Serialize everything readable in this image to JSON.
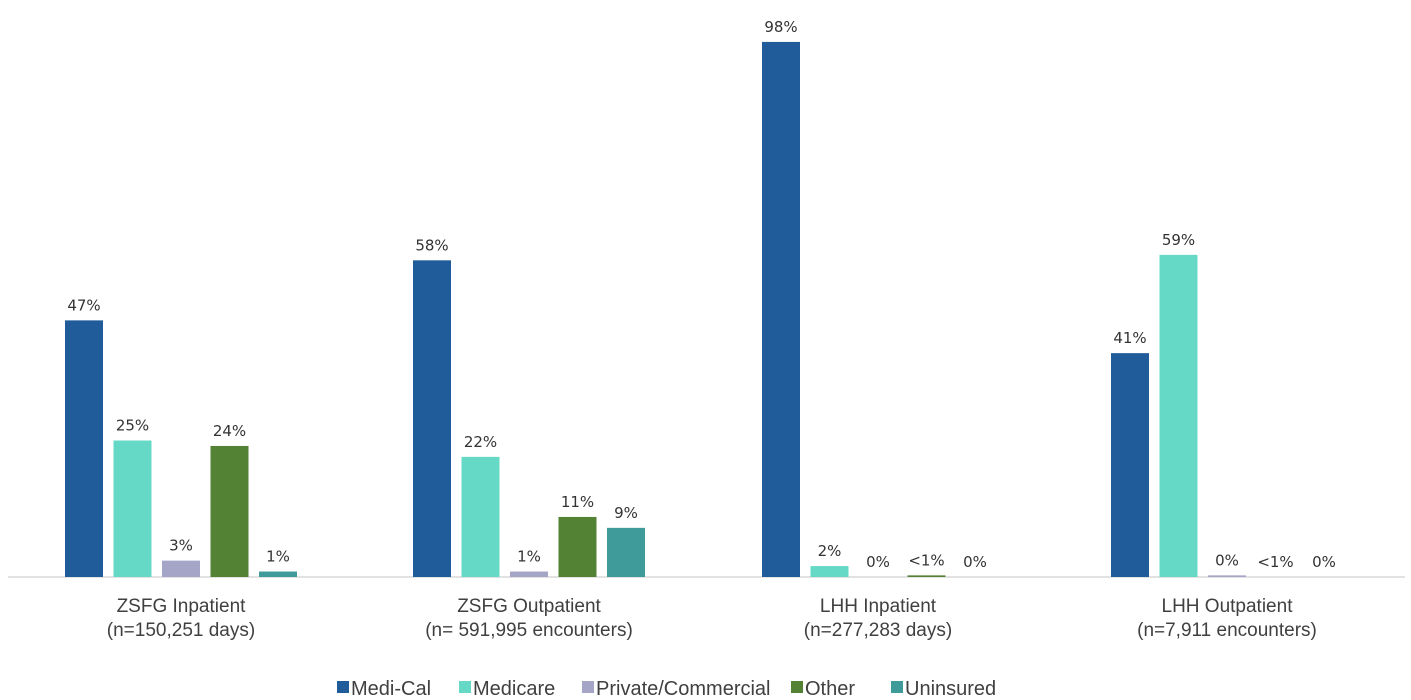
{
  "chart_data": {
    "type": "bar",
    "categories": [
      [
        "ZSFG Inpatient",
        "(n=150,251 days)"
      ],
      [
        "ZSFG Outpatient",
        "(n= 591,995 encounters)"
      ],
      [
        "LHH Inpatient",
        "(n=277,283 days)"
      ],
      [
        "LHH Outpatient",
        "(n=7,911 encounters)"
      ]
    ],
    "series": [
      {
        "name": "Medi-Cal",
        "color": "#1f5c99",
        "values": [
          47,
          58,
          98,
          41
        ],
        "labels": [
          "47%",
          "58%",
          "98%",
          "41%"
        ]
      },
      {
        "name": "Medicare",
        "color": "#66d9c6",
        "values": [
          25,
          22,
          2,
          59
        ],
        "labels": [
          "25%",
          "22%",
          "2%",
          "59%"
        ]
      },
      {
        "name": "Private/Commercial",
        "color": "#a5a5c8",
        "values": [
          3,
          1,
          0,
          0.3
        ],
        "labels": [
          "3%",
          "1%",
          "0%",
          "0%"
        ]
      },
      {
        "name": "Other",
        "color": "#548235",
        "values": [
          24,
          11,
          0.3,
          0
        ],
        "labels": [
          "24%",
          "11%",
          "<1%",
          "<1%"
        ]
      },
      {
        "name": "Uninsured",
        "color": "#3f9a9a",
        "values": [
          1,
          9,
          0,
          0
        ],
        "labels": [
          "1%",
          "9%",
          "0%",
          "0%"
        ]
      }
    ],
    "ylim": [
      0,
      100
    ],
    "grid": false,
    "legend": "bottom"
  }
}
